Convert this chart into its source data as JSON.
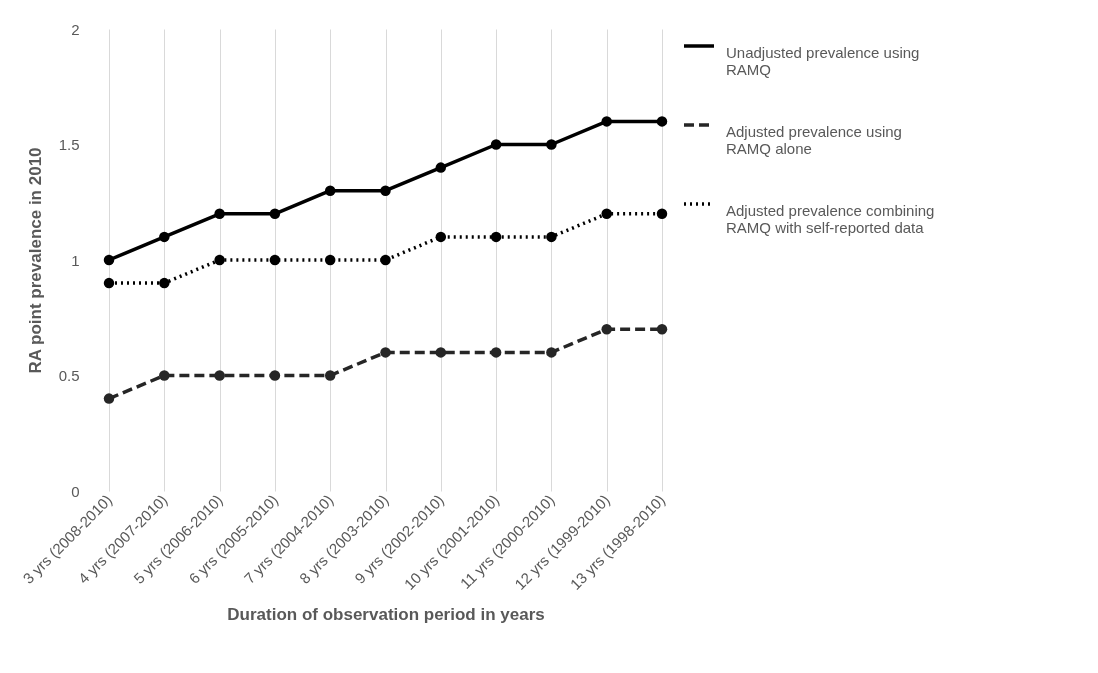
{
  "chart_data": {
    "type": "line",
    "xlabel": "Duration of observation period in years",
    "ylabel": "RA point prevalence in 2010",
    "categories": [
      "3 yrs (2008-2010)",
      "4 yrs (2007-2010)",
      "5 yrs (2006-2010)",
      "6 yrs (2005-2010)",
      "7 yrs (2004-2010)",
      "8 yrs (2003-2010)",
      "9 yrs (2002-2010)",
      "10 yrs (2001-2010)",
      "11 yrs (2000-2010)",
      "12 yrs (1999-2010)",
      "13 yrs (1998-2010)"
    ],
    "series": [
      {
        "name": "Unadjusted prevalence using RAMQ",
        "color": "#000000",
        "line_style": "solid",
        "values": [
          1,
          1.1,
          1.2,
          1.2,
          1.3,
          1.3,
          1.4,
          1.5,
          1.5,
          1.6,
          1.6
        ]
      },
      {
        "name": "Adjusted prevalence using RAMQ alone",
        "color": "#262626",
        "line_style": "dashed",
        "values": [
          0.4,
          0.5,
          0.5,
          0.5,
          0.5,
          0.6,
          0.6,
          0.6,
          0.6,
          0.7,
          0.7
        ]
      },
      {
        "name": "Adjusted prevalence combining RAMQ with self-reported data",
        "color": "#000000",
        "line_style": "dotted",
        "values": [
          0.9,
          0.9,
          1,
          1,
          1,
          1,
          1.1,
          1.1,
          1.1,
          1.2,
          1.2
        ]
      }
    ],
    "ylim": [
      0,
      2
    ],
    "yticks": [
      0,
      0.5,
      1,
      1.5,
      2
    ],
    "grid": "x",
    "legend": "right",
    "marker": "circle"
  }
}
